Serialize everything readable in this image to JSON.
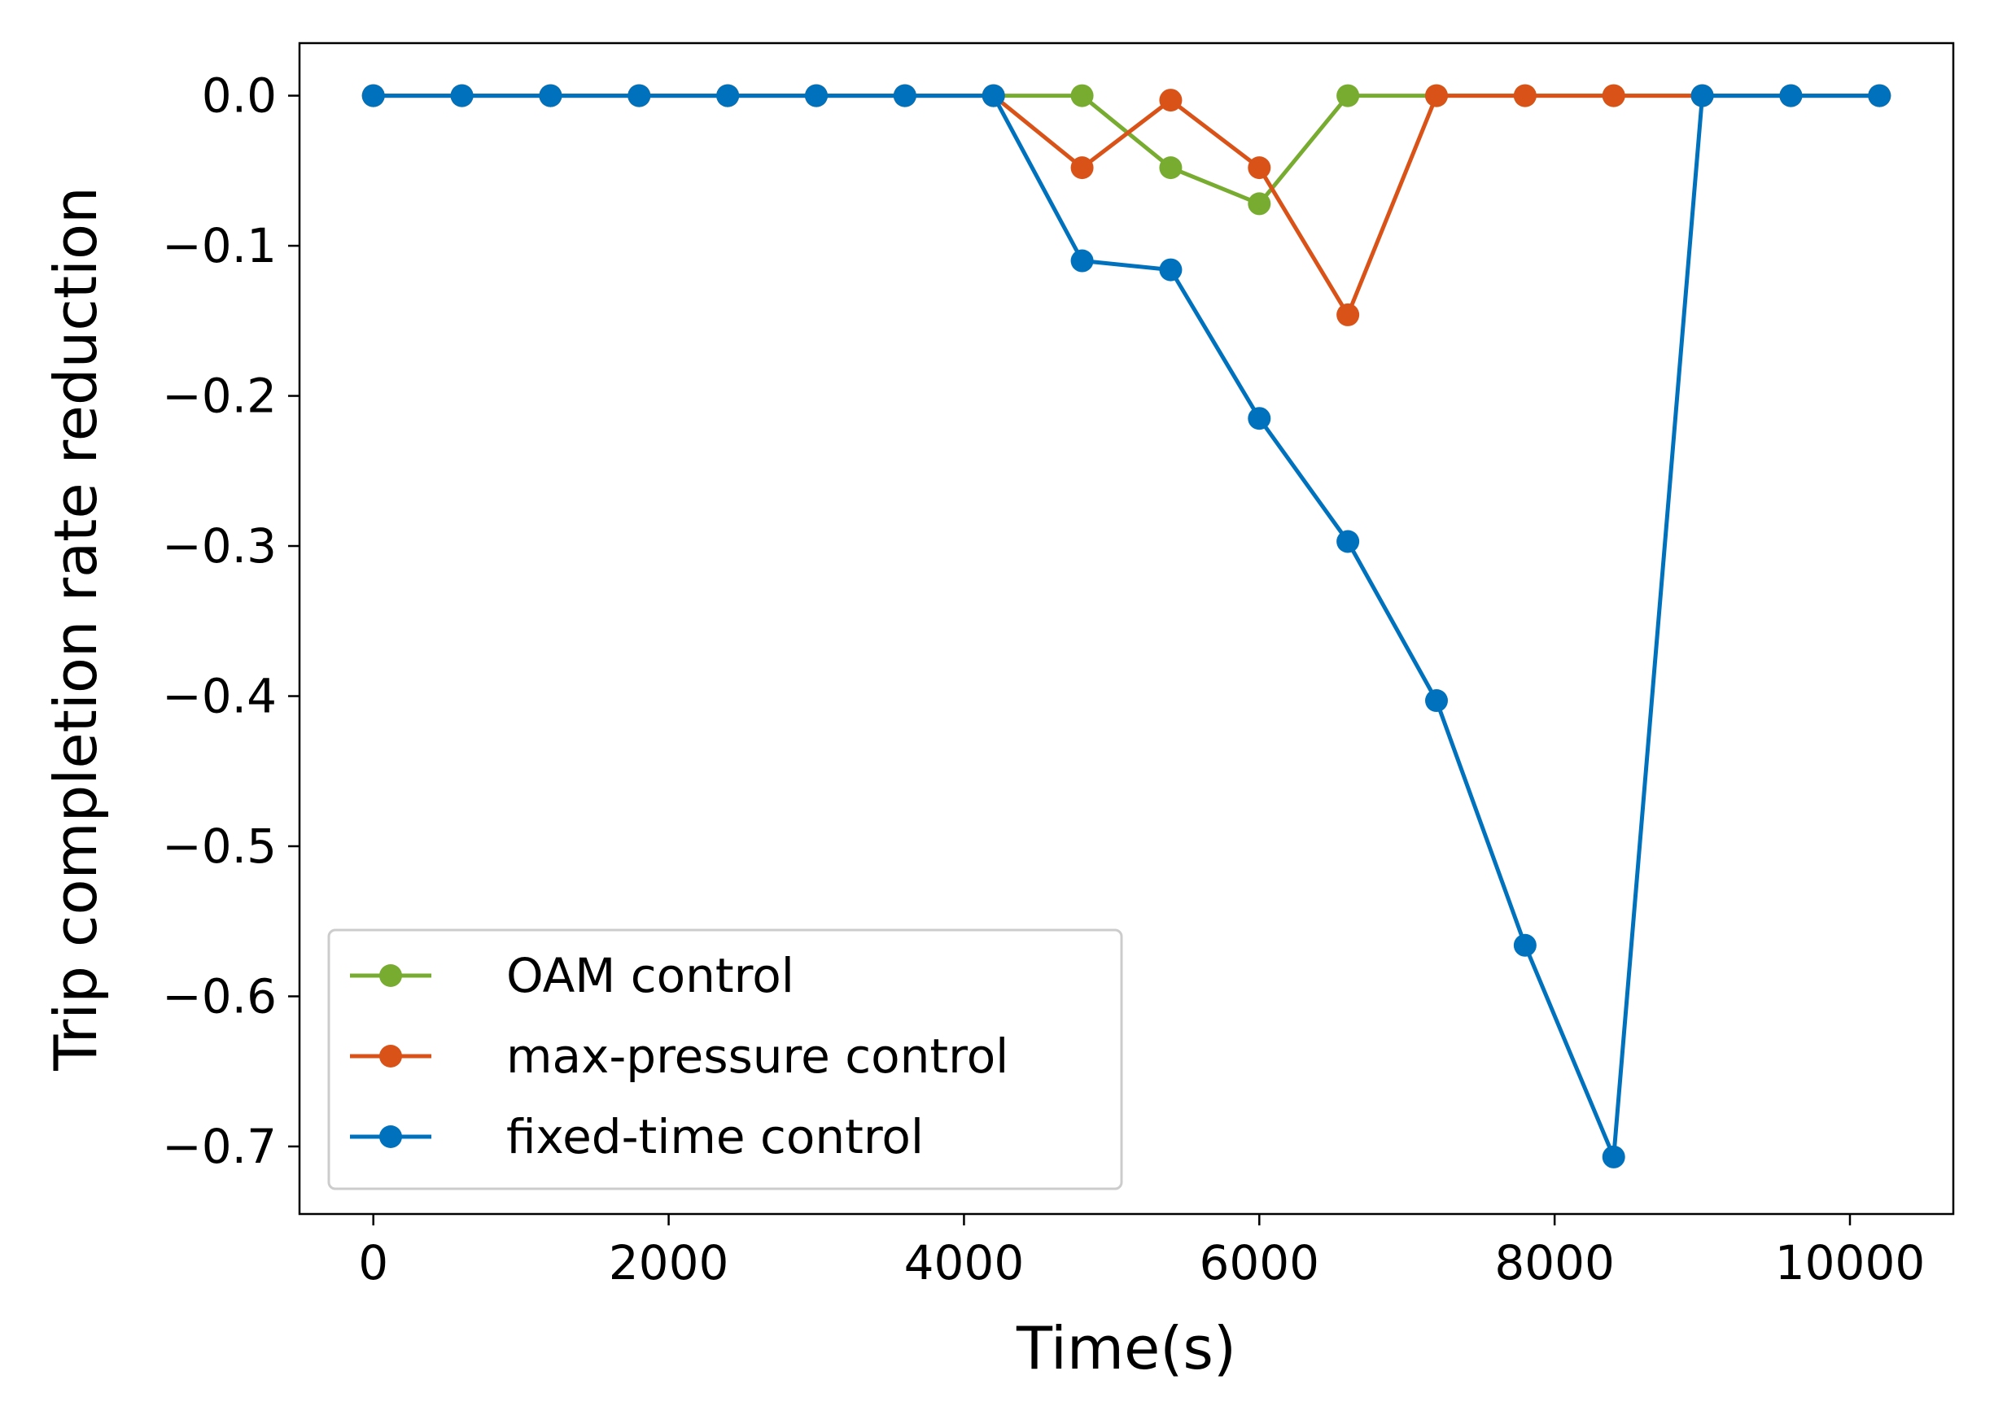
{
  "chart_data": {
    "type": "line",
    "title": "",
    "xlabel": "Time(s)",
    "ylabel": "Trip completion rate reduction",
    "xlim": [
      -500,
      10700
    ],
    "ylim": [
      -0.745,
      0.035
    ],
    "x_ticks": [
      0,
      2000,
      4000,
      6000,
      8000,
      10000
    ],
    "x_tick_labels": [
      "0",
      "2000",
      "4000",
      "6000",
      "8000",
      "10000"
    ],
    "y_ticks": [
      0.0,
      -0.1,
      -0.2,
      -0.3,
      -0.4,
      -0.5,
      -0.6,
      -0.7
    ],
    "y_tick_labels": [
      "0.0",
      "−0.1",
      "−0.2",
      "−0.3",
      "−0.4",
      "−0.5",
      "−0.6",
      "−0.7"
    ],
    "grid": false,
    "legend_position": "lower-left",
    "x": [
      0,
      600,
      1200,
      1800,
      2400,
      3000,
      3600,
      4200,
      4800,
      5400,
      6000,
      6600,
      7200,
      7800,
      8400,
      9000,
      9600,
      10200
    ],
    "series": [
      {
        "name": "OAM control",
        "color": "#77ac30",
        "values": [
          0,
          0,
          0,
          0,
          0,
          0,
          0,
          0,
          0,
          -0.048,
          -0.072,
          0,
          0,
          0,
          0,
          0,
          0,
          0
        ]
      },
      {
        "name": "max-pressure control",
        "color": "#d95319",
        "values": [
          0,
          0,
          0,
          0,
          0,
          0,
          0,
          0,
          -0.048,
          -0.003,
          -0.048,
          -0.146,
          0,
          0,
          0,
          0,
          0,
          0
        ]
      },
      {
        "name": "fixed-time control",
        "color": "#0072bd",
        "values": [
          0,
          0,
          0,
          0,
          0,
          0,
          0,
          0,
          -0.11,
          -0.116,
          -0.215,
          -0.297,
          -0.403,
          -0.566,
          -0.707,
          0,
          0,
          0
        ]
      }
    ]
  }
}
